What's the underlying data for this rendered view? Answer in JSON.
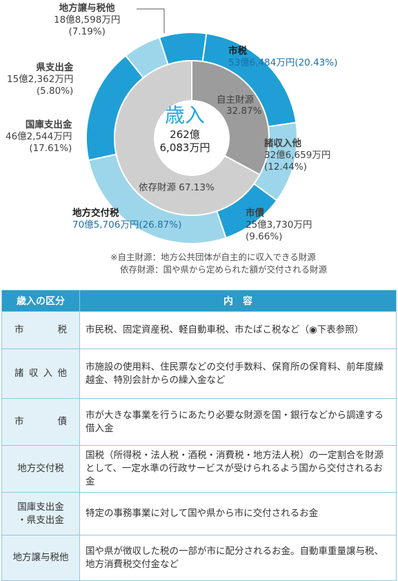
{
  "chart_data": {
    "type": "donut",
    "center": {
      "title": "歳入",
      "amount_line1": "262億",
      "amount_line2": "6,083万円"
    },
    "outer_ring": [
      {
        "name": "市税",
        "amount": "53億6,484万円",
        "percent_label": "(20.43%)",
        "value": 20.43,
        "color": "#1f9fd6"
      },
      {
        "name": "諸収入他",
        "amount": "32億6,659万円",
        "percent_label": "(12.44%)",
        "value": 12.44,
        "color": "#9dd6ea"
      },
      {
        "name": "市債",
        "amount": "25億3,730万円",
        "percent_label": "(9.66%)",
        "value": 9.66,
        "color": "#1f9fd6"
      },
      {
        "name": "地方交付税",
        "amount": "70億5,706万円",
        "percent_label": "(26.87%)",
        "value": 26.87,
        "color": "#9dd6ea"
      },
      {
        "name": "国庫支出金",
        "amount": "46億2,544万円",
        "percent_label": "(17.61%)",
        "value": 17.61,
        "color": "#1f9fd6"
      },
      {
        "name": "県支出金",
        "amount": "15億2,362万円",
        "percent_label": "(5.80%)",
        "value": 5.8,
        "color": "#9dd6ea"
      },
      {
        "name": "地方譲与税他",
        "amount": "18億8,598万円",
        "percent_label": "(7.19%)",
        "value": 7.19,
        "color": "#1f9fd6"
      }
    ],
    "inner_ring": [
      {
        "name": "自主財源",
        "percent_label": "32.87%",
        "value": 32.87,
        "color": "#9c9c9c"
      },
      {
        "name": "依存財源",
        "percent_label": "67.13%",
        "value": 67.13,
        "color": "#cfcfcf"
      }
    ]
  },
  "notes": {
    "line1": "※自主財源：地方公共団体が自主的に収入できる財源",
    "line2": "依存財源：国や県から定められた額が交付される財源"
  },
  "inner_label_self": "自主財源",
  "inner_label_depend": "依存財源 67.13%",
  "table": {
    "header_category": "歳入の区分",
    "header_content": "内　容",
    "rows": [
      {
        "cat": [
          "市",
          "税"
        ],
        "desc": "市民税、固定資産税、軽自動車税、市たばこ税など（◉下表参照）"
      },
      {
        "cat": [
          "諸",
          "収",
          "入",
          "他"
        ],
        "desc": "市施設の使用料、住民票などの交付手数料、保育所の保育料、前年度繰越金、特別会計からの繰入金など"
      },
      {
        "cat": [
          "市",
          "債"
        ],
        "desc": "市が大きな事業を行うにあたり必要な財源を国・銀行などから調達する借入金"
      },
      {
        "cat_text": "地方交付税",
        "desc": "国税（所得税・法人税・酒税・消費税・地方法人税）の一定割合を財源として、一定水準の行政サービスが受けられるよう国から交付されるお金"
      },
      {
        "cat_line1": "国庫支出金",
        "cat_line2": "・県支出金",
        "desc": "特定の事務事業に対して国や県から市に交付されるお金"
      },
      {
        "cat_text": "地方譲与税他",
        "desc": "国や県が徴収した税の一部が市に配分されるお金。自動車重量譲与税、地方消費税交付金など"
      }
    ]
  }
}
